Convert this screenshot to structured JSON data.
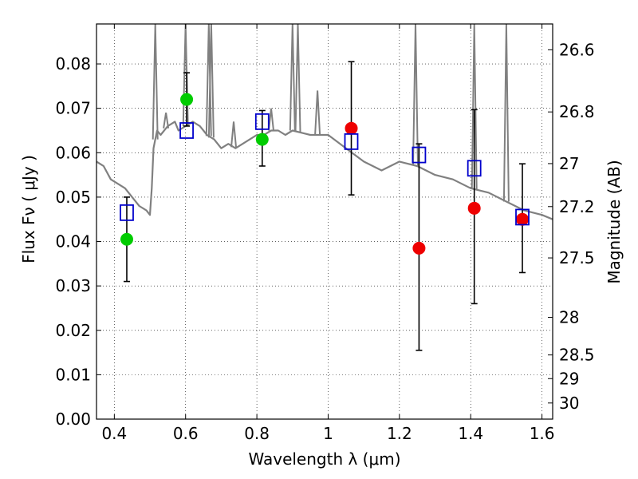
{
  "chart_data": {
    "type": "scatter",
    "xlabel": "Wavelength  λ (μm)",
    "ylabel": "Flux  Fν  ( μJy )",
    "y2label": "Magnitude (AB)",
    "xlim": [
      0.35,
      1.63
    ],
    "ylim": [
      0.0,
      0.089
    ],
    "x_ticks": [
      "0.4",
      "0.6",
      "0.8",
      "1",
      "1.2",
      "1.4",
      "1.6"
    ],
    "x_tick_values": [
      0.4,
      0.6,
      0.8,
      1.0,
      1.2,
      1.4,
      1.6
    ],
    "y_ticks": [
      "0.00",
      "0.01",
      "0.02",
      "0.03",
      "0.04",
      "0.05",
      "0.06",
      "0.07",
      "0.08"
    ],
    "y_tick_values": [
      0.0,
      0.01,
      0.02,
      0.03,
      0.04,
      0.05,
      0.06,
      0.07,
      0.08
    ],
    "y2_ticks": [
      "26.6",
      "26.8",
      "27",
      "27.2",
      "27.5",
      "28",
      "28.5",
      "29",
      "30"
    ],
    "y2_tick_values": [
      26.6,
      26.8,
      27.0,
      27.2,
      27.5,
      28.0,
      28.5,
      29.0,
      30.0
    ],
    "grid": true,
    "colors": {
      "sed": "#808080",
      "model": "#0000cc",
      "green": "#00cc00",
      "red": "#ee0000",
      "errorbar": "#000000"
    },
    "sed_spectrum": {
      "x": [
        0.35,
        0.37,
        0.39,
        0.41,
        0.43,
        0.45,
        0.47,
        0.49,
        0.5,
        0.505,
        0.51,
        0.515,
        0.52,
        0.53,
        0.55,
        0.57,
        0.58,
        0.6,
        0.62,
        0.64,
        0.66,
        0.68,
        0.7,
        0.72,
        0.74,
        0.76,
        0.78,
        0.8,
        0.82,
        0.84,
        0.86,
        0.88,
        0.9,
        0.95,
        1.0,
        1.05,
        1.1,
        1.15,
        1.2,
        1.25,
        1.3,
        1.35,
        1.4,
        1.45,
        1.5,
        1.55,
        1.6,
        1.63
      ],
      "y": [
        0.058,
        0.057,
        0.054,
        0.053,
        0.052,
        0.05,
        0.048,
        0.047,
        0.046,
        0.052,
        0.061,
        0.063,
        0.065,
        0.064,
        0.066,
        0.067,
        0.065,
        0.066,
        0.067,
        0.066,
        0.064,
        0.063,
        0.061,
        0.062,
        0.061,
        0.062,
        0.063,
        0.064,
        0.064,
        0.065,
        0.065,
        0.064,
        0.065,
        0.064,
        0.064,
        0.061,
        0.058,
        0.056,
        0.058,
        0.057,
        0.055,
        0.054,
        0.052,
        0.051,
        0.049,
        0.047,
        0.046,
        0.045
      ]
    },
    "sed_spikes": {
      "x": [
        0.515,
        0.545,
        0.6,
        0.665,
        0.672,
        0.735,
        0.84,
        0.9,
        0.915,
        0.97,
        1.245,
        1.41,
        1.5
      ],
      "y": [
        0.089,
        0.069,
        0.089,
        0.089,
        0.089,
        0.067,
        0.07,
        0.089,
        0.089,
        0.074,
        0.089,
        0.089,
        0.089
      ]
    },
    "model_points": {
      "x": [
        0.435,
        0.603,
        0.815,
        1.065,
        1.255,
        1.41,
        1.545
      ],
      "y": [
        0.0465,
        0.065,
        0.067,
        0.0625,
        0.0595,
        0.0565,
        0.0455
      ]
    },
    "observed_green": {
      "x": [
        0.435,
        0.603,
        0.815
      ],
      "y": [
        0.0405,
        0.072,
        0.063
      ],
      "yerr_low": [
        0.031,
        0.066,
        0.057
      ],
      "yerr_high": [
        0.05,
        0.078,
        0.0695
      ]
    },
    "observed_red": {
      "x": [
        1.065,
        1.255,
        1.41,
        1.545
      ],
      "y": [
        0.0655,
        0.0385,
        0.0475,
        0.045
      ],
      "yerr_low": [
        0.0505,
        0.0155,
        0.026,
        0.033
      ],
      "yerr_high": [
        0.0805,
        0.062,
        0.0697,
        0.0575
      ]
    }
  }
}
